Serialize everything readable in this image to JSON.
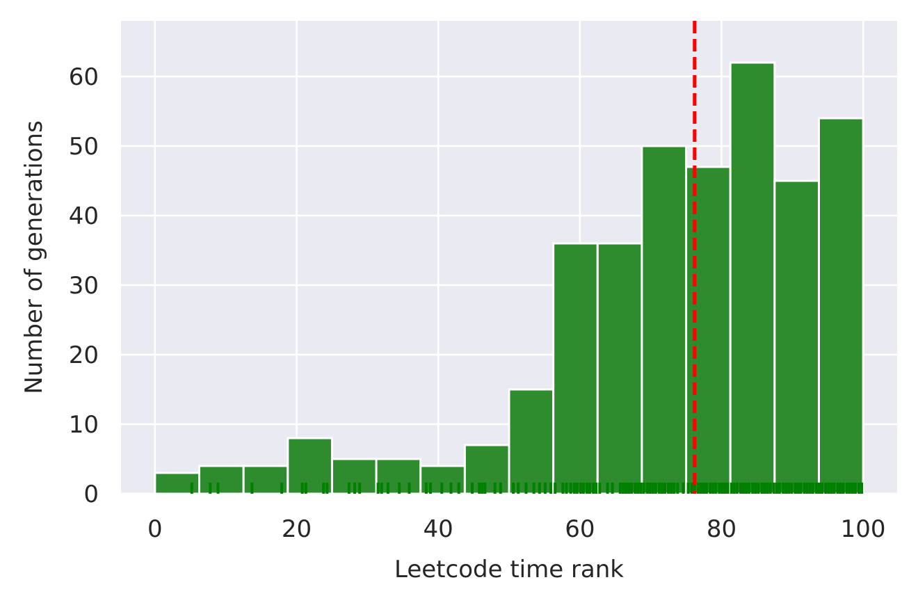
{
  "chart_data": {
    "type": "bar",
    "xlabel": "Leetcode time rank",
    "ylabel": "Number of generations",
    "xlim": [
      -4.8,
      104.8
    ],
    "ylim": [
      0,
      68
    ],
    "xticks": [
      0,
      20,
      40,
      60,
      80,
      100
    ],
    "yticks": [
      0,
      10,
      20,
      30,
      40,
      50,
      60
    ],
    "grid": true,
    "bin_edges": [
      0,
      6.25,
      12.5,
      18.75,
      25,
      31.25,
      37.5,
      43.75,
      50,
      56.25,
      62.5,
      68.75,
      75,
      81.25,
      87.5,
      93.75,
      100
    ],
    "values": [
      3,
      4,
      4,
      8,
      5,
      5,
      4,
      7,
      15,
      36,
      36,
      50,
      47,
      62,
      45,
      54
    ],
    "mean_line": {
      "x": 76.2,
      "style": "dashed"
    },
    "rug_x": [
      5.2,
      7.8,
      8.9,
      13.7,
      17.9,
      20.8,
      21.3,
      23.8,
      24.3,
      27.4,
      28.2,
      28.9,
      31.5,
      32.0,
      32.9,
      34.5,
      35.9,
      38.3,
      38.9,
      40.5,
      41.8,
      42.9,
      44.8,
      45.8,
      46.2,
      46.6,
      48.0,
      48.8,
      50.6,
      51.3,
      52.4,
      53.5,
      54.3,
      55.1,
      55.9,
      56.5,
      57.6,
      58.1,
      58.7,
      59.2,
      59.6,
      60.1,
      60.5,
      61.0,
      61.4,
      61.9,
      62.3,
      62.8,
      63.9,
      64.6,
      65.7,
      66.1,
      66.5,
      66.9,
      67.3,
      67.8,
      68.2,
      68.6,
      69.0,
      69.5,
      69.9,
      70.3,
      70.7,
      71.2,
      71.6,
      72.0,
      72.5,
      72.9,
      73.3,
      73.8,
      74.6,
      75.3,
      75.8,
      76.2,
      76.7,
      77.1,
      77.5,
      77.9,
      78.4,
      78.8,
      79.2,
      79.7,
      80.1,
      80.5,
      80.9,
      81.4,
      81.8,
      82.2,
      82.7,
      83.1,
      83.5,
      83.9,
      84.4,
      84.8,
      85.2,
      85.7,
      86.1,
      86.5,
      86.9,
      87.4,
      87.8,
      88.2,
      88.7,
      89.1,
      89.5,
      89.9,
      90.4,
      90.8,
      91.2,
      91.7,
      92.1,
      92.5,
      92.9,
      93.4,
      93.8,
      94.2,
      94.7,
      95.1,
      95.5,
      95.9,
      96.4,
      96.8,
      97.2,
      97.7,
      98.1,
      98.5,
      98.9,
      99.4,
      99.8
    ],
    "colors": {
      "bar": "#2e8b2e",
      "rug": "#008000",
      "mean_line": "#ff0000",
      "plot_background": "#eaeaf2",
      "grid": "#ffffff"
    }
  }
}
